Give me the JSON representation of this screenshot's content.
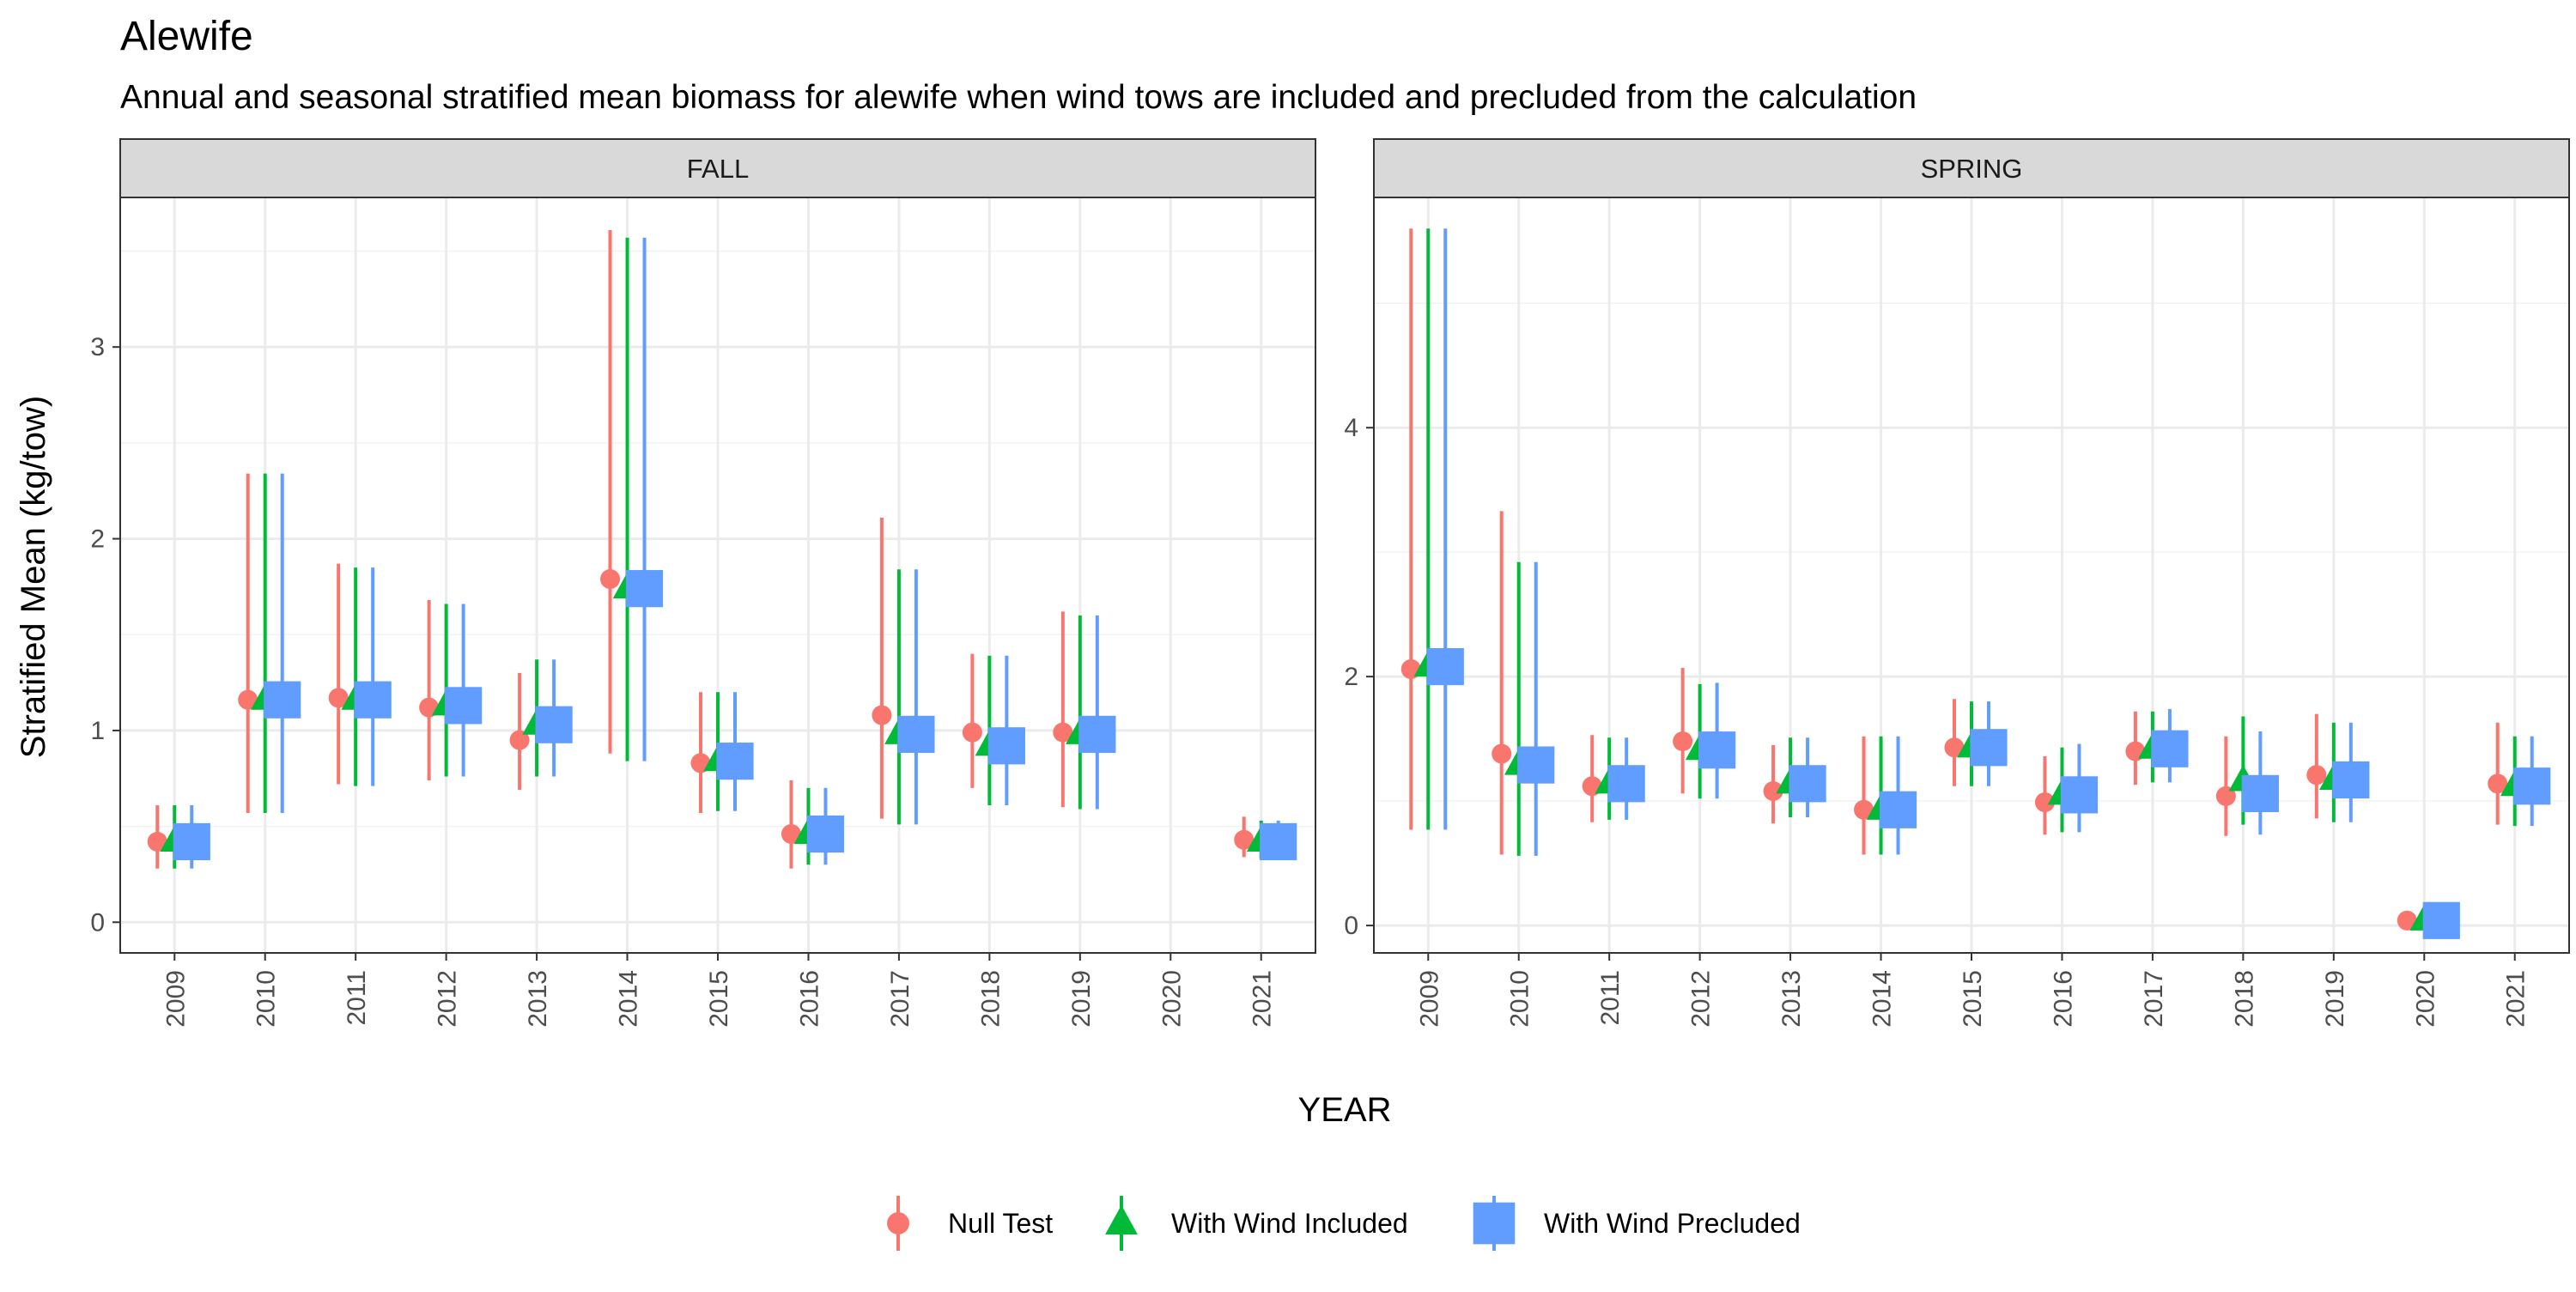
{
  "chart_data": {
    "type": "scatter",
    "title": "Alewife",
    "subtitle": "Annual and seasonal stratified mean biomass for alewife when wind tows are included and precluded from the calculation",
    "xlabel": "YEAR",
    "ylabel": "Stratified Mean (kg/tow)",
    "legend_position": "bottom",
    "grid": true,
    "series": [
      {
        "name": "Null Test",
        "color": "#F8766D",
        "shape": "circle"
      },
      {
        "name": "With Wind Included",
        "color": "#00BA38",
        "shape": "triangle"
      },
      {
        "name": "With Wind Precluded",
        "color": "#619CFF",
        "shape": "square"
      }
    ],
    "panels": [
      {
        "label": "FALL",
        "x": [
          "2009",
          "2010",
          "2011",
          "2012",
          "2013",
          "2014",
          "2015",
          "2016",
          "2017",
          "2018",
          "2019",
          "2020",
          "2021"
        ],
        "ylim": [
          -0.16,
          3.78
        ],
        "yticks": [
          0,
          1,
          2,
          3
        ],
        "data": [
          {
            "series": "Null Test",
            "points": [
              {
                "x": "2009",
                "y": 0.42,
                "lo": 0.28,
                "hi": 0.61
              },
              {
                "x": "2010",
                "y": 1.16,
                "lo": 0.57,
                "hi": 2.34
              },
              {
                "x": "2011",
                "y": 1.17,
                "lo": 0.72,
                "hi": 1.87
              },
              {
                "x": "2012",
                "y": 1.12,
                "lo": 0.74,
                "hi": 1.68
              },
              {
                "x": "2013",
                "y": 0.95,
                "lo": 0.69,
                "hi": 1.3
              },
              {
                "x": "2014",
                "y": 1.79,
                "lo": 0.88,
                "hi": 3.61
              },
              {
                "x": "2015",
                "y": 0.83,
                "lo": 0.57,
                "hi": 1.2
              },
              {
                "x": "2016",
                "y": 0.46,
                "lo": 0.28,
                "hi": 0.74
              },
              {
                "x": "2017",
                "y": 1.08,
                "lo": 0.54,
                "hi": 2.11
              },
              {
                "x": "2018",
                "y": 0.99,
                "lo": 0.7,
                "hi": 1.4
              },
              {
                "x": "2019",
                "y": 0.99,
                "lo": 0.6,
                "hi": 1.62
              },
              {
                "x": "2021",
                "y": 0.43,
                "lo": 0.34,
                "hi": 0.55
              }
            ]
          },
          {
            "series": "With Wind Included",
            "points": [
              {
                "x": "2009",
                "y": 0.42,
                "lo": 0.28,
                "hi": 0.61
              },
              {
                "x": "2010",
                "y": 1.16,
                "lo": 0.57,
                "hi": 2.34
              },
              {
                "x": "2011",
                "y": 1.16,
                "lo": 0.71,
                "hi": 1.85
              },
              {
                "x": "2012",
                "y": 1.13,
                "lo": 0.76,
                "hi": 1.66
              },
              {
                "x": "2013",
                "y": 1.03,
                "lo": 0.76,
                "hi": 1.37
              },
              {
                "x": "2014",
                "y": 1.74,
                "lo": 0.84,
                "hi": 3.57
              },
              {
                "x": "2015",
                "y": 0.84,
                "lo": 0.58,
                "hi": 1.2
              },
              {
                "x": "2016",
                "y": 0.46,
                "lo": 0.3,
                "hi": 0.7
              },
              {
                "x": "2017",
                "y": 0.98,
                "lo": 0.51,
                "hi": 1.84
              },
              {
                "x": "2018",
                "y": 0.92,
                "lo": 0.61,
                "hi": 1.39
              },
              {
                "x": "2019",
                "y": 0.98,
                "lo": 0.59,
                "hi": 1.6
              },
              {
                "x": "2021",
                "y": 0.42,
                "lo": 0.33,
                "hi": 0.53
              }
            ]
          },
          {
            "series": "With Wind Precluded",
            "points": [
              {
                "x": "2009",
                "y": 0.42,
                "lo": 0.28,
                "hi": 0.61
              },
              {
                "x": "2010",
                "y": 1.16,
                "lo": 0.57,
                "hi": 2.34
              },
              {
                "x": "2011",
                "y": 1.16,
                "lo": 0.71,
                "hi": 1.85
              },
              {
                "x": "2012",
                "y": 1.13,
                "lo": 0.76,
                "hi": 1.66
              },
              {
                "x": "2013",
                "y": 1.03,
                "lo": 0.76,
                "hi": 1.37
              },
              {
                "x": "2014",
                "y": 1.74,
                "lo": 0.84,
                "hi": 3.57
              },
              {
                "x": "2015",
                "y": 0.84,
                "lo": 0.58,
                "hi": 1.2
              },
              {
                "x": "2016",
                "y": 0.46,
                "lo": 0.3,
                "hi": 0.7
              },
              {
                "x": "2017",
                "y": 0.98,
                "lo": 0.51,
                "hi": 1.84
              },
              {
                "x": "2018",
                "y": 0.92,
                "lo": 0.61,
                "hi": 1.39
              },
              {
                "x": "2019",
                "y": 0.98,
                "lo": 0.59,
                "hi": 1.6
              },
              {
                "x": "2021",
                "y": 0.42,
                "lo": 0.33,
                "hi": 0.53
              }
            ]
          }
        ]
      },
      {
        "label": "SPRING",
        "x": [
          "2009",
          "2010",
          "2011",
          "2012",
          "2013",
          "2014",
          "2015",
          "2016",
          "2017",
          "2018",
          "2019",
          "2020",
          "2021"
        ],
        "ylim": [
          -0.22,
          5.85
        ],
        "yticks": [
          0,
          2,
          4
        ],
        "data": [
          {
            "series": "Null Test",
            "points": [
              {
                "x": "2009",
                "y": 2.06,
                "lo": 0.77,
                "hi": 5.6
              },
              {
                "x": "2010",
                "y": 1.38,
                "lo": 0.57,
                "hi": 3.33
              },
              {
                "x": "2011",
                "y": 1.12,
                "lo": 0.83,
                "hi": 1.53
              },
              {
                "x": "2012",
                "y": 1.48,
                "lo": 1.06,
                "hi": 2.07
              },
              {
                "x": "2013",
                "y": 1.08,
                "lo": 0.82,
                "hi": 1.45
              },
              {
                "x": "2014",
                "y": 0.93,
                "lo": 0.57,
                "hi": 1.52
              },
              {
                "x": "2015",
                "y": 1.43,
                "lo": 1.12,
                "hi": 1.82
              },
              {
                "x": "2016",
                "y": 0.99,
                "lo": 0.73,
                "hi": 1.36
              },
              {
                "x": "2017",
                "y": 1.4,
                "lo": 1.13,
                "hi": 1.72
              },
              {
                "x": "2018",
                "y": 1.04,
                "lo": 0.72,
                "hi": 1.52
              },
              {
                "x": "2019",
                "y": 1.21,
                "lo": 0.86,
                "hi": 1.7
              },
              {
                "x": "2020",
                "y": 0.04,
                "lo": 0.01,
                "hi": 0.07
              },
              {
                "x": "2021",
                "y": 1.14,
                "lo": 0.81,
                "hi": 1.63
              }
            ]
          },
          {
            "series": "With Wind Included",
            "points": [
              {
                "x": "2009",
                "y": 2.08,
                "lo": 0.77,
                "hi": 5.6
              },
              {
                "x": "2010",
                "y": 1.29,
                "lo": 0.56,
                "hi": 2.92
              },
              {
                "x": "2011",
                "y": 1.14,
                "lo": 0.85,
                "hi": 1.51
              },
              {
                "x": "2012",
                "y": 1.41,
                "lo": 1.02,
                "hi": 1.94
              },
              {
                "x": "2013",
                "y": 1.14,
                "lo": 0.87,
                "hi": 1.51
              },
              {
                "x": "2014",
                "y": 0.93,
                "lo": 0.57,
                "hi": 1.52
              },
              {
                "x": "2015",
                "y": 1.43,
                "lo": 1.12,
                "hi": 1.8
              },
              {
                "x": "2016",
                "y": 1.05,
                "lo": 0.75,
                "hi": 1.43
              },
              {
                "x": "2017",
                "y": 1.42,
                "lo": 1.15,
                "hi": 1.72
              },
              {
                "x": "2018",
                "y": 1.16,
                "lo": 0.81,
                "hi": 1.68
              },
              {
                "x": "2019",
                "y": 1.17,
                "lo": 0.83,
                "hi": 1.63
              },
              {
                "x": "2020",
                "y": 0.04,
                "lo": 0.01,
                "hi": 0.07
              },
              {
                "x": "2021",
                "y": 1.12,
                "lo": 0.8,
                "hi": 1.52
              }
            ]
          },
          {
            "series": "With Wind Precluded",
            "points": [
              {
                "x": "2009",
                "y": 2.08,
                "lo": 0.77,
                "hi": 5.6
              },
              {
                "x": "2010",
                "y": 1.29,
                "lo": 0.56,
                "hi": 2.92
              },
              {
                "x": "2011",
                "y": 1.14,
                "lo": 0.85,
                "hi": 1.51
              },
              {
                "x": "2012",
                "y": 1.41,
                "lo": 1.02,
                "hi": 1.95
              },
              {
                "x": "2013",
                "y": 1.14,
                "lo": 0.87,
                "hi": 1.51
              },
              {
                "x": "2014",
                "y": 0.93,
                "lo": 0.57,
                "hi": 1.52
              },
              {
                "x": "2015",
                "y": 1.43,
                "lo": 1.12,
                "hi": 1.8
              },
              {
                "x": "2016",
                "y": 1.05,
                "lo": 0.75,
                "hi": 1.46
              },
              {
                "x": "2017",
                "y": 1.42,
                "lo": 1.15,
                "hi": 1.74
              },
              {
                "x": "2018",
                "y": 1.06,
                "lo": 0.73,
                "hi": 1.56
              },
              {
                "x": "2019",
                "y": 1.17,
                "lo": 0.83,
                "hi": 1.63
              },
              {
                "x": "2020",
                "y": 0.04,
                "lo": 0.01,
                "hi": 0.07
              },
              {
                "x": "2021",
                "y": 1.12,
                "lo": 0.8,
                "hi": 1.52
              }
            ]
          }
        ]
      }
    ]
  }
}
